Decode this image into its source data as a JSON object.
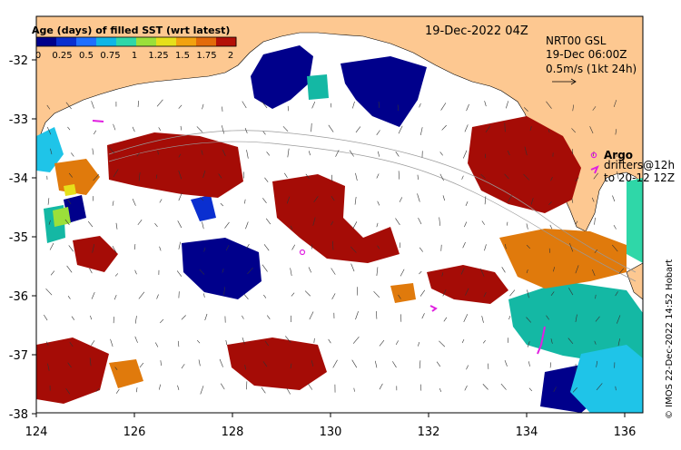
{
  "map": {
    "date_label": "19-Dec-2022 04Z",
    "colorbar": {
      "title": "Age (days) of filled SST (wrt latest)",
      "ticks": [
        "0",
        "0.25",
        "0.5",
        "0.75",
        "1",
        "1.25",
        "1.5",
        "1.75",
        "2"
      ],
      "colors": [
        "#00008b",
        "#0a2fd0",
        "#1e6fff",
        "#10b6e6",
        "#2fd7a8",
        "#9be03a",
        "#e6e01a",
        "#f2a20f",
        "#e36a0a",
        "#b41008"
      ]
    },
    "nrt": {
      "line1": "NRT00 GSL",
      "line2": "19-Dec 06:00Z",
      "line3": "0.5m/s (1kt 24h)"
    },
    "legend": {
      "argo_label": "Argo",
      "drifters_line1": "drifters@12h",
      "drifters_line2": "to 20-12 12Z"
    },
    "credit": "© IMOS 22-Dec-2022 14:52 Hobart",
    "x_ticks": [
      "124",
      "126",
      "128",
      "130",
      "132",
      "134",
      "136"
    ],
    "y_ticks": [
      "-32",
      "-33",
      "-34",
      "-35",
      "-36",
      "-37",
      "-38"
    ],
    "colors": {
      "land": "#fdc891",
      "dark_blue": "#00008b",
      "dark_red": "#a50c06",
      "orange": "#e07a0c",
      "teal": "#14b8a4",
      "cyan": "#1fc4e8",
      "magenta": "#e020e0"
    }
  }
}
